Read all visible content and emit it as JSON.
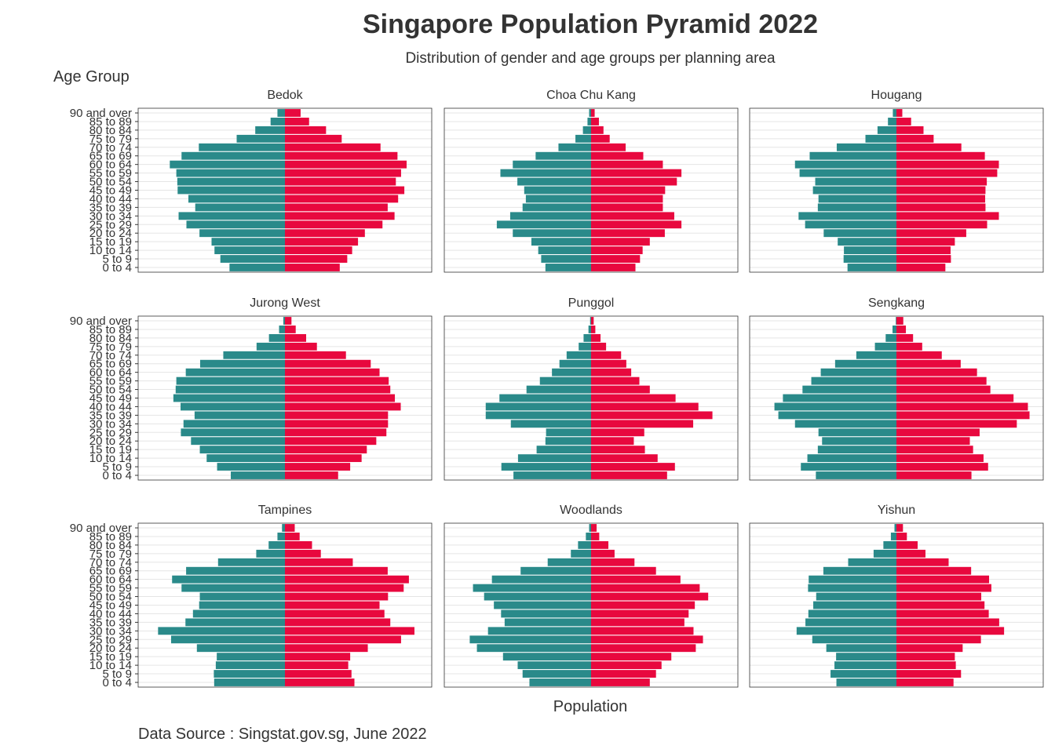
{
  "chart_data": {
    "type": "bar",
    "title": "Singapore Population Pyramid 2022",
    "subtitle": "Distribution of gender and age groups per planning area",
    "ylabel": "Age Group",
    "xlabel": "Population",
    "caption": "Data Source : Singstat.gov.sg, June 2022",
    "grid": true,
    "categories": [
      "0 to 4",
      "5 to 9",
      "10 to 14",
      "15 to 19",
      "20 to 24",
      "25 to 29",
      "30 to 34",
      "35 to 39",
      "40 to 44",
      "45 to 49",
      "50 to 54",
      "55 to 59",
      "60 to 64",
      "65 to 69",
      "70 to 74",
      "75 to 79",
      "80 to 84",
      "85 to 89",
      "90 and over"
    ],
    "colors": {
      "left": "#2A8A8A",
      "right": "#E8083E"
    },
    "xlim": [
      -4500,
      4500
    ],
    "panels": [
      {
        "name": "Bedok",
        "left": [
          -1700,
          -1980,
          -2160,
          -2250,
          -2620,
          -3020,
          -3260,
          -2750,
          -2960,
          -3290,
          -3300,
          -3330,
          -3530,
          -3170,
          -2640,
          -1480,
          -910,
          -440,
          -230
        ],
        "right": [
          1680,
          1910,
          2060,
          2240,
          2450,
          2990,
          3360,
          3150,
          3470,
          3660,
          3400,
          3560,
          3730,
          3450,
          2930,
          1740,
          1260,
          740,
          480
        ]
      },
      {
        "name": "Choa Chu Kang",
        "left": [
          -1400,
          -1530,
          -1620,
          -1830,
          -2400,
          -2890,
          -2480,
          -2100,
          -2000,
          -2050,
          -2260,
          -2780,
          -2400,
          -1700,
          -1000,
          -480,
          -250,
          -110,
          -60
        ],
        "right": [
          1360,
          1500,
          1580,
          1800,
          2260,
          2770,
          2550,
          2200,
          2200,
          2270,
          2630,
          2770,
          2200,
          1600,
          1060,
          570,
          380,
          240,
          110
        ]
      },
      {
        "name": "Hougang",
        "left": [
          -1500,
          -1620,
          -1610,
          -1800,
          -2230,
          -2800,
          -3000,
          -2410,
          -2390,
          -2560,
          -2490,
          -2970,
          -3110,
          -2660,
          -1830,
          -950,
          -580,
          -260,
          -110
        ],
        "right": [
          1500,
          1670,
          1660,
          1790,
          2140,
          2780,
          3140,
          2730,
          2720,
          2730,
          2770,
          3090,
          3140,
          2710,
          1990,
          1140,
          830,
          450,
          180
        ]
      },
      {
        "name": "Jurong West",
        "left": [
          -1660,
          -2080,
          -2400,
          -2610,
          -2880,
          -3190,
          -3110,
          -2770,
          -3200,
          -3420,
          -3350,
          -3330,
          -3040,
          -2600,
          -1890,
          -870,
          -490,
          -180,
          -50
        ],
        "right": [
          1630,
          2000,
          2350,
          2510,
          2800,
          3110,
          3160,
          3160,
          3550,
          3370,
          3230,
          3180,
          2900,
          2630,
          1870,
          980,
          650,
          330,
          200
        ]
      },
      {
        "name": "Punggol",
        "left": [
          -2380,
          -2750,
          -2240,
          -1670,
          -1400,
          -1380,
          -2460,
          -3230,
          -3230,
          -2810,
          -1980,
          -1570,
          -1200,
          -970,
          -750,
          -380,
          -230,
          -80,
          -30
        ],
        "right": [
          2330,
          2570,
          2040,
          1650,
          1310,
          1630,
          3130,
          3720,
          3290,
          2590,
          1800,
          1480,
          1230,
          1080,
          920,
          460,
          290,
          130,
          80
        ]
      },
      {
        "name": "Sengkang",
        "left": [
          -2470,
          -2930,
          -2730,
          -2410,
          -2280,
          -2390,
          -3110,
          -3620,
          -3740,
          -3480,
          -2880,
          -2610,
          -2320,
          -1880,
          -1230,
          -660,
          -330,
          -120,
          -20
        ],
        "right": [
          2300,
          2810,
          2670,
          2350,
          2250,
          2550,
          3690,
          4080,
          4030,
          3590,
          2880,
          2760,
          2470,
          1970,
          1390,
          790,
          510,
          290,
          210
        ]
      },
      {
        "name": "Tampines",
        "left": [
          -2170,
          -2180,
          -2120,
          -2090,
          -2700,
          -3490,
          -3890,
          -3050,
          -2820,
          -2630,
          -2610,
          -3170,
          -3460,
          -3030,
          -2050,
          -880,
          -500,
          -230,
          -90
        ],
        "right": [
          2130,
          2040,
          1940,
          2000,
          2540,
          3560,
          3970,
          3230,
          3050,
          2900,
          3160,
          3640,
          3800,
          3150,
          2080,
          1100,
          830,
          450,
          300
        ]
      },
      {
        "name": "Woodlands",
        "left": [
          -1890,
          -2100,
          -2250,
          -2700,
          -3500,
          -3720,
          -3160,
          -2650,
          -2760,
          -2980,
          -3280,
          -3620,
          -3040,
          -2160,
          -1330,
          -620,
          -400,
          -160,
          -60
        ],
        "right": [
          1800,
          1990,
          2160,
          2460,
          3210,
          3430,
          3140,
          2860,
          2990,
          3180,
          3590,
          3330,
          2740,
          1990,
          1330,
          720,
          530,
          250,
          170
        ]
      },
      {
        "name": "Yishun",
        "left": [
          -1840,
          -2020,
          -1900,
          -1850,
          -2150,
          -2580,
          -3060,
          -2790,
          -2700,
          -2550,
          -2460,
          -2710,
          -2690,
          -2240,
          -1480,
          -700,
          -400,
          -170,
          -60
        ],
        "right": [
          1750,
          1980,
          1820,
          1790,
          2030,
          2590,
          3300,
          3150,
          2830,
          2700,
          2600,
          2910,
          2840,
          2290,
          1600,
          890,
          650,
          320,
          200
        ]
      }
    ]
  }
}
